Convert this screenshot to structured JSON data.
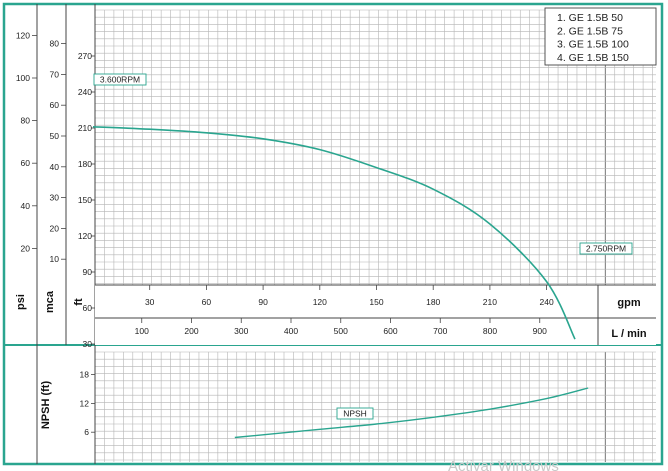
{
  "chart_data": [
    {
      "type": "line",
      "title": "",
      "x_axes": [
        {
          "unit": "gpm",
          "ticks": [
            30,
            60,
            90,
            120,
            150,
            180,
            210,
            240
          ]
        },
        {
          "unit": "L / min",
          "ticks": [
            100,
            200,
            300,
            400,
            500,
            600,
            700,
            800,
            900
          ]
        }
      ],
      "y_axes": [
        {
          "unit": "psi",
          "ticks": [
            20,
            40,
            60,
            80,
            100,
            120
          ]
        },
        {
          "unit": "mca",
          "ticks": [
            10,
            20,
            30,
            40,
            50,
            60,
            70,
            80
          ]
        },
        {
          "unit": "ft",
          "ticks": [
            30,
            60,
            90,
            120,
            150,
            180,
            210,
            240,
            270
          ]
        }
      ],
      "legend": {
        "placement": "top-right",
        "entries": [
          "1. GE 1.5B 50",
          "2. GE 1.5B 75",
          "3. GE 1.5B 100",
          "4. GE 1.5B 150"
        ]
      },
      "annotations": {
        "start_rpm": "3.600RPM",
        "end_rpm": "2.750RPM"
      },
      "series": [
        {
          "x_unit": "gpm",
          "y_unit": "ft",
          "x": [
            0,
            30,
            60,
            90,
            120,
            150,
            180,
            210,
            240,
            255
          ],
          "y": [
            211,
            209,
            206,
            201,
            192,
            177,
            159,
            130,
            82,
            34
          ]
        }
      ],
      "grid": true,
      "line_color": "#2aa58f",
      "frame_color": "#2aa58f"
    },
    {
      "type": "line",
      "y_axis": {
        "name": "NPSH (ft)",
        "ticks": [
          6,
          12,
          18
        ]
      },
      "series": [
        {
          "name": "NPSH",
          "x_unit": "gpm",
          "y_unit": "ft",
          "x": [
            75,
            120,
            150,
            180,
            210,
            240,
            262
          ],
          "y": [
            4.9,
            6.6,
            7.7,
            9.1,
            10.8,
            13.0,
            15.2
          ]
        }
      ],
      "grid": true
    }
  ],
  "watermark": "Activar Windows"
}
